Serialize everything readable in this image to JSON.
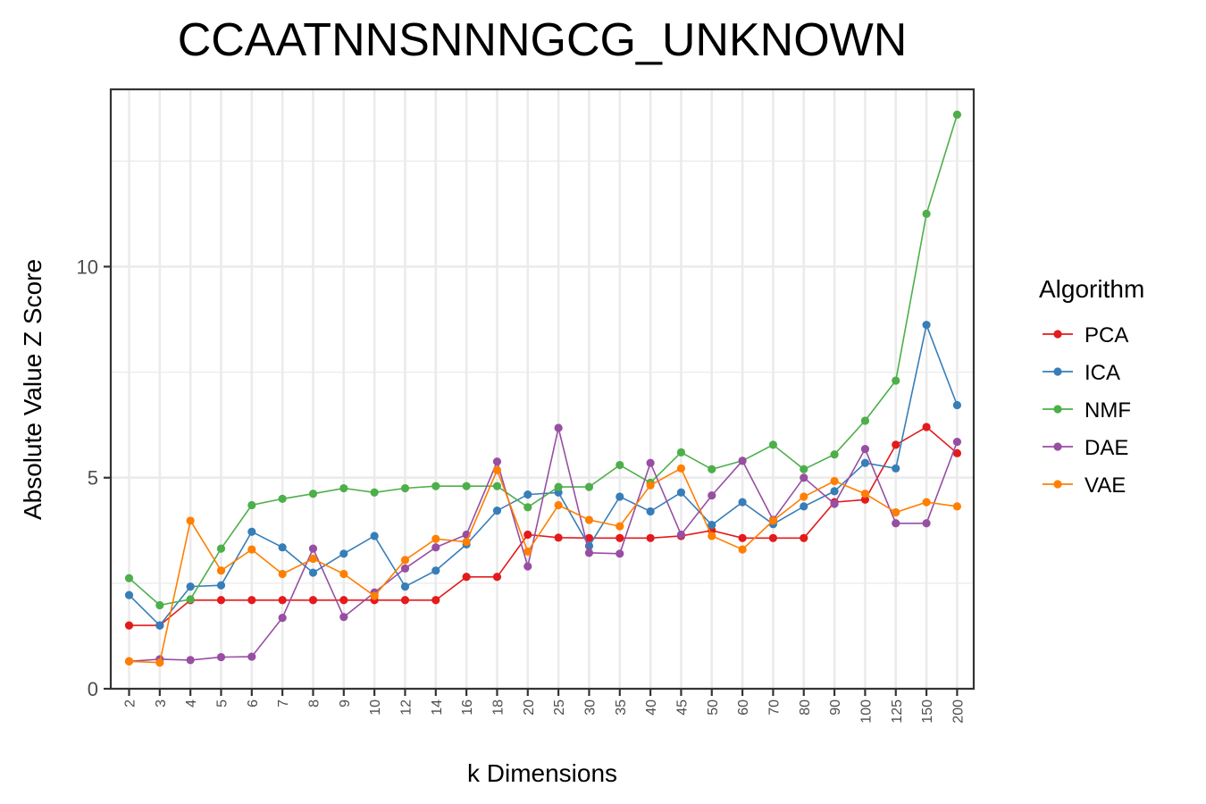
{
  "chart_data": {
    "type": "line",
    "title": "CCAATNNSNNNGCG_UNKNOWN",
    "xlabel": "k Dimensions",
    "ylabel": "Absolute Value Z Score",
    "categories": [
      "2",
      "3",
      "4",
      "5",
      "6",
      "7",
      "8",
      "9",
      "10",
      "12",
      "14",
      "16",
      "18",
      "20",
      "25",
      "30",
      "35",
      "40",
      "45",
      "50",
      "60",
      "70",
      "80",
      "90",
      "100",
      "125",
      "150",
      "200"
    ],
    "yticks": [
      0,
      5,
      10
    ],
    "ylim": [
      0,
      14.2
    ],
    "grid": true,
    "legend": {
      "title": "Algorithm",
      "position": "right"
    },
    "series": [
      {
        "name": "PCA",
        "color": "#e41a1c",
        "values": [
          1.5,
          1.5,
          2.1,
          2.1,
          2.1,
          2.1,
          2.1,
          2.1,
          2.1,
          2.1,
          2.1,
          2.65,
          2.65,
          3.65,
          3.58,
          3.57,
          3.57,
          3.57,
          3.62,
          3.75,
          3.57,
          3.57,
          3.57,
          4.42,
          4.48,
          5.78,
          6.2,
          5.58
        ]
      },
      {
        "name": "ICA",
        "color": "#377eb8",
        "values": [
          2.22,
          1.5,
          2.42,
          2.45,
          3.72,
          3.35,
          2.75,
          3.2,
          3.62,
          2.42,
          2.8,
          3.42,
          4.22,
          4.6,
          4.65,
          3.38,
          4.55,
          4.2,
          4.65,
          3.88,
          4.42,
          3.9,
          4.32,
          4.68,
          5.35,
          5.22,
          8.62,
          6.72
        ]
      },
      {
        "name": "NMF",
        "color": "#4daf4a",
        "values": [
          2.62,
          1.98,
          2.12,
          3.32,
          4.35,
          4.5,
          4.62,
          4.75,
          4.65,
          4.75,
          4.8,
          4.8,
          4.8,
          4.3,
          4.78,
          4.78,
          5.3,
          4.88,
          5.6,
          5.2,
          5.4,
          5.78,
          5.2,
          5.55,
          6.35,
          7.3,
          11.25,
          13.6
        ]
      },
      {
        "name": "DAE",
        "color": "#984ea3",
        "values": [
          0.65,
          0.7,
          0.68,
          0.75,
          0.76,
          1.68,
          3.32,
          1.7,
          2.28,
          2.85,
          3.35,
          3.65,
          5.38,
          2.9,
          6.18,
          3.22,
          3.2,
          5.35,
          3.65,
          4.58,
          5.4,
          4.0,
          5.0,
          4.38,
          5.68,
          3.92,
          3.92,
          5.85
        ]
      },
      {
        "name": "VAE",
        "color": "#ff7f00",
        "values": [
          0.65,
          0.62,
          3.98,
          2.8,
          3.3,
          2.72,
          3.08,
          2.72,
          2.2,
          3.05,
          3.55,
          3.48,
          5.18,
          3.25,
          4.35,
          4.0,
          3.85,
          4.82,
          5.22,
          3.62,
          3.3,
          3.98,
          4.55,
          4.92,
          4.62,
          4.18,
          4.42,
          4.32
        ]
      }
    ]
  }
}
